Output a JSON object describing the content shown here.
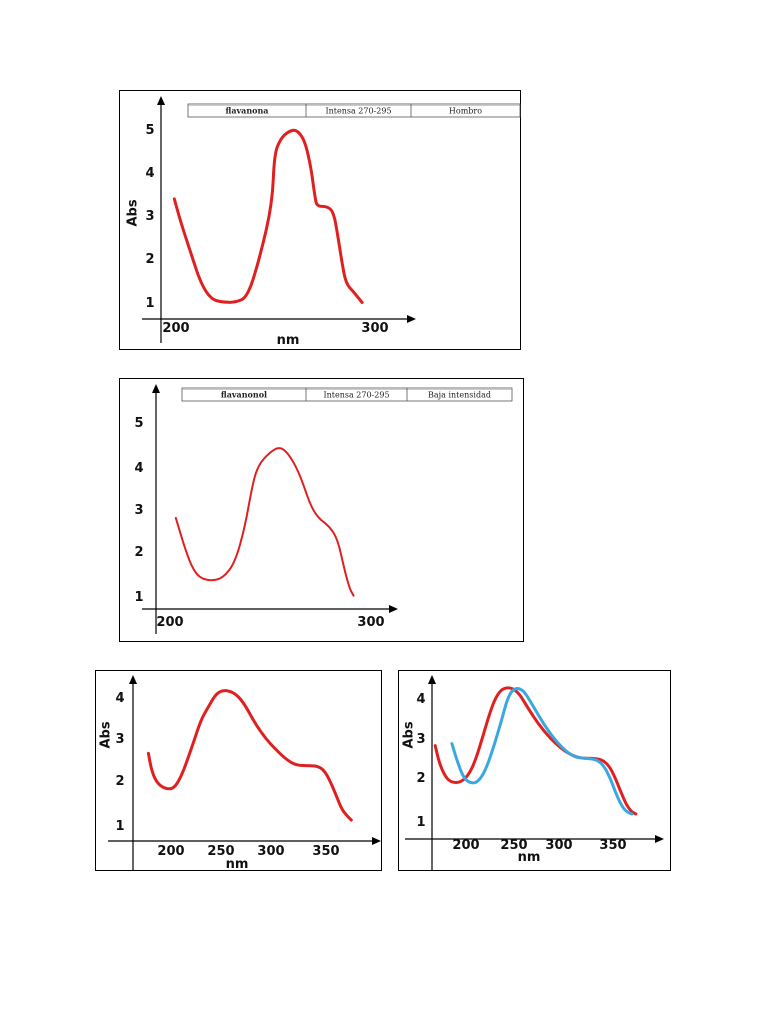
{
  "chart_data": [
    {
      "type": "line",
      "xlabel": "nm",
      "ylabel": "Abs",
      "x_ticks": [
        "200",
        "300"
      ],
      "y_ticks": [
        "1",
        "2",
        "3",
        "4",
        "5"
      ],
      "xlim": [
        195,
        315
      ],
      "ylim": [
        0.6,
        5.5
      ],
      "table": {
        "cells": [
          "flavanona",
          "Intensa 270-295",
          "Hombro"
        ]
      },
      "series": [
        {
          "color": "#e02020",
          "points": [
            [
              202,
              3.3
            ],
            [
              205,
              2.8
            ],
            [
              210,
              2.1
            ],
            [
              215,
              1.4
            ],
            [
              220,
              1.05
            ],
            [
              225,
              0.98
            ],
            [
              232,
              0.97
            ],
            [
              238,
              1.1
            ],
            [
              244,
              2.0
            ],
            [
              250,
              3.2
            ],
            [
              251,
              4.3
            ],
            [
              254,
              4.65
            ],
            [
              258,
              4.82
            ],
            [
              262,
              4.86
            ],
            [
              266,
              4.6
            ],
            [
              269,
              4.0
            ],
            [
              271,
              3.3
            ],
            [
              272,
              3.13
            ],
            [
              277,
              3.13
            ],
            [
              280,
              3.0
            ],
            [
              282,
              2.5
            ],
            [
              284,
              1.9
            ],
            [
              286,
              1.4
            ],
            [
              290,
              1.2
            ],
            [
              294,
              0.97
            ]
          ]
        }
      ]
    },
    {
      "type": "line",
      "xlabel": "",
      "ylabel": "",
      "x_ticks": [
        "200",
        "300"
      ],
      "y_ticks": [
        "1",
        "2",
        "3",
        "4",
        "5"
      ],
      "xlim": [
        193,
        317
      ],
      "ylim": [
        0.65,
        5.6
      ],
      "table": {
        "cells": [
          "flavanonol",
          "Intensa 270-295",
          "Baja intensidad"
        ]
      },
      "series": [
        {
          "color": "#e02020",
          "points": [
            [
              201,
              2.7
            ],
            [
              205,
              2.1
            ],
            [
              209,
              1.6
            ],
            [
              213,
              1.35
            ],
            [
              219,
              1.28
            ],
            [
              225,
              1.35
            ],
            [
              231,
              1.7
            ],
            [
              236,
              2.5
            ],
            [
              240,
              3.5
            ],
            [
              243,
              3.9
            ],
            [
              248,
              4.15
            ],
            [
              253,
              4.3
            ],
            [
              257,
              4.2
            ],
            [
              262,
              3.85
            ],
            [
              266,
              3.4
            ],
            [
              269,
              3.0
            ],
            [
              273,
              2.7
            ],
            [
              279,
              2.5
            ],
            [
              283,
              2.2
            ],
            [
              286,
              1.6
            ],
            [
              289,
              1.1
            ],
            [
              291,
              0.95
            ]
          ]
        }
      ]
    },
    {
      "type": "line",
      "xlabel": "nm",
      "ylabel": "Abs",
      "x_ticks": [
        "200",
        "250",
        "300",
        "350"
      ],
      "y_ticks": [
        "1",
        "2",
        "3",
        "4"
      ],
      "xlim": [
        160,
        393
      ],
      "ylim": [
        0.5,
        4.45
      ],
      "series": [
        {
          "color": "#e02020",
          "points": [
            [
              172,
              2.6
            ],
            [
              175,
              2.2
            ],
            [
              180,
              1.9
            ],
            [
              188,
              1.75
            ],
            [
              197,
              1.75
            ],
            [
              205,
              2.1
            ],
            [
              215,
              2.8
            ],
            [
              223,
              3.4
            ],
            [
              230,
              3.7
            ],
            [
              237,
              4.0
            ],
            [
              243,
              4.1
            ],
            [
              250,
              4.1
            ],
            [
              258,
              4.0
            ],
            [
              266,
              3.75
            ],
            [
              276,
              3.3
            ],
            [
              286,
              2.95
            ],
            [
              296,
              2.68
            ],
            [
              306,
              2.45
            ],
            [
              315,
              2.32
            ],
            [
              325,
              2.3
            ],
            [
              334,
              2.3
            ],
            [
              340,
              2.25
            ],
            [
              345,
              2.1
            ],
            [
              350,
              1.85
            ],
            [
              355,
              1.55
            ],
            [
              360,
              1.25
            ],
            [
              365,
              1.1
            ],
            [
              369,
              1.0
            ]
          ]
        }
      ]
    },
    {
      "type": "line",
      "xlabel": "nm",
      "ylabel": "Abs",
      "x_ticks": [
        "200",
        "250",
        "300",
        "350"
      ],
      "y_ticks": [
        "1",
        "2",
        "3",
        "4"
      ],
      "xlim": [
        160,
        386
      ],
      "ylim": [
        0.3,
        4.4
      ],
      "series": [
        {
          "color": "#e02020",
          "points": [
            [
              166,
              2.65
            ],
            [
              170,
              2.2
            ],
            [
              176,
              1.85
            ],
            [
              182,
              1.72
            ],
            [
              190,
              1.72
            ],
            [
              198,
              1.9
            ],
            [
              205,
              2.3
            ],
            [
              212,
              2.9
            ],
            [
              220,
              3.6
            ],
            [
              226,
              3.95
            ],
            [
              232,
              4.1
            ],
            [
              240,
              4.1
            ],
            [
              247,
              3.95
            ],
            [
              255,
              3.6
            ],
            [
              265,
              3.2
            ],
            [
              276,
              2.85
            ],
            [
              286,
              2.6
            ],
            [
              296,
              2.42
            ],
            [
              306,
              2.33
            ],
            [
              317,
              2.33
            ],
            [
              326,
              2.3
            ],
            [
              333,
              2.15
            ],
            [
              339,
              1.85
            ],
            [
              345,
              1.45
            ],
            [
              350,
              1.15
            ],
            [
              355,
              0.98
            ],
            [
              359,
              0.93
            ]
          ]
        },
        {
          "color": "#3aa8e0",
          "points": [
            [
              182,
              2.7
            ],
            [
              186,
              2.35
            ],
            [
              192,
              1.9
            ],
            [
              198,
              1.72
            ],
            [
              206,
              1.7
            ],
            [
              214,
              2.0
            ],
            [
              222,
              2.6
            ],
            [
              230,
              3.3
            ],
            [
              235,
              3.8
            ],
            [
              240,
              4.05
            ],
            [
              246,
              4.1
            ],
            [
              252,
              4.0
            ],
            [
              260,
              3.65
            ],
            [
              270,
              3.2
            ],
            [
              281,
              2.8
            ],
            [
              292,
              2.5
            ],
            [
              301,
              2.35
            ],
            [
              311,
              2.33
            ],
            [
              321,
              2.3
            ],
            [
              328,
              2.15
            ],
            [
              334,
              1.85
            ],
            [
              339,
              1.5
            ],
            [
              344,
              1.2
            ],
            [
              349,
              1.0
            ],
            [
              355,
              0.93
            ]
          ]
        }
      ]
    }
  ]
}
